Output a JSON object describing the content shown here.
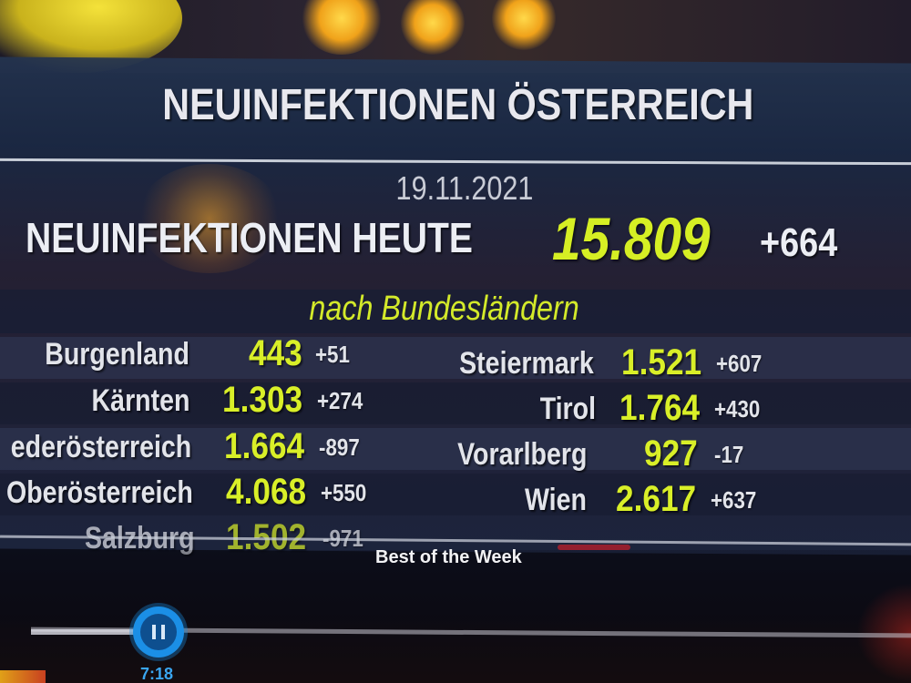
{
  "broadcast": {
    "title": "NEUINFEKTIONEN ÖSTERREICH",
    "date": "19.11.2021",
    "headline_label": "NEUINFEKTIONEN HEUTE",
    "headline_value": "15.809",
    "headline_diff": "+664",
    "subheading": "nach Bundesländern",
    "left_states": [
      {
        "name": "Burgenland",
        "value": "443",
        "diff": "+51"
      },
      {
        "name": "Kärnten",
        "value": "1.303",
        "diff": "+274"
      },
      {
        "name": "ederösterreich",
        "value": "1.664",
        "diff": "-897"
      },
      {
        "name": "Oberösterreich",
        "value": "4.068",
        "diff": "+550"
      },
      {
        "name": "Salzburg",
        "value": "1.502",
        "diff": "-971"
      }
    ],
    "right_states": [
      {
        "name": "Steiermark",
        "value": "1.521",
        "diff": "+607"
      },
      {
        "name": "Tirol",
        "value": "1.764",
        "diff": "+430"
      },
      {
        "name": "Vorarlberg",
        "value": "927",
        "diff": "-17"
      },
      {
        "name": "Wien",
        "value": "2.617",
        "diff": "+637"
      }
    ],
    "accent_color": "#d9ef28"
  },
  "player": {
    "video_title": "Best of the Week",
    "current_time": "7:18",
    "play_state_icon": "pause-icon",
    "accent_color": "#1b8fe6"
  }
}
